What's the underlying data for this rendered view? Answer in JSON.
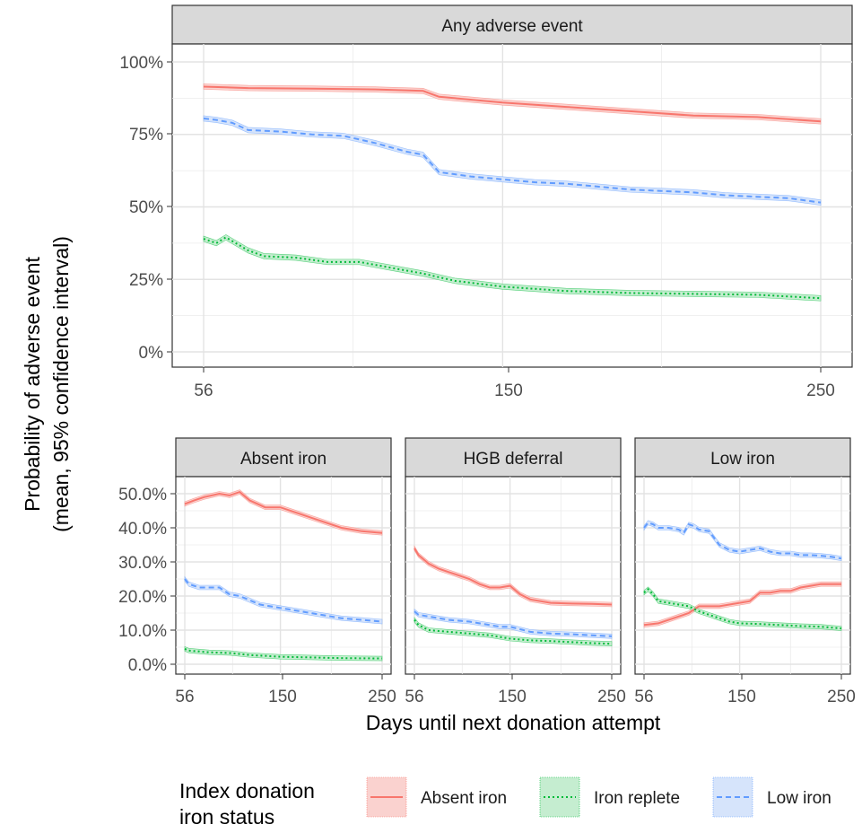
{
  "figure": {
    "ylabel_line1": "Probability of adverse event",
    "ylabel_line2": "(mean, 95% confidence interval)",
    "xlabel": "Days until next donation attempt",
    "legend": {
      "title_line1": "Index donation",
      "title_line2": "iron status",
      "items": [
        {
          "label": "Absent iron",
          "color": "#F8766D",
          "dash": "solid"
        },
        {
          "label": "Iron replete",
          "color": "#00BA38",
          "dash": "dotted"
        },
        {
          "label": "Low iron",
          "color": "#619CFF",
          "dash": "dashed"
        }
      ]
    }
  },
  "chart_data": [
    {
      "type": "line",
      "panel": "Any adverse event",
      "x_ticks": [
        56,
        150,
        250
      ],
      "y_ticks": [
        "0%",
        "25%",
        "50%",
        "75%",
        "100%"
      ],
      "xlim": [
        56,
        250
      ],
      "ylim": [
        0,
        1
      ],
      "grid": true,
      "series": [
        {
          "name": "Absent iron",
          "x": [
            56,
            70,
            90,
            110,
            125,
            130,
            150,
            170,
            190,
            210,
            230,
            250
          ],
          "y": [
            0.915,
            0.91,
            0.908,
            0.905,
            0.9,
            0.88,
            0.86,
            0.845,
            0.83,
            0.815,
            0.81,
            0.795
          ]
        },
        {
          "name": "Low iron",
          "x": [
            56,
            60,
            65,
            70,
            80,
            90,
            100,
            110,
            120,
            125,
            130,
            140,
            150,
            160,
            170,
            180,
            190,
            200,
            210,
            220,
            230,
            240,
            250
          ],
          "y": [
            0.805,
            0.8,
            0.79,
            0.765,
            0.76,
            0.75,
            0.745,
            0.72,
            0.69,
            0.68,
            0.62,
            0.605,
            0.595,
            0.585,
            0.58,
            0.57,
            0.56,
            0.555,
            0.55,
            0.54,
            0.535,
            0.53,
            0.515
          ]
        },
        {
          "name": "Iron replete",
          "x": [
            56,
            60,
            63,
            70,
            75,
            85,
            95,
            105,
            115,
            125,
            135,
            150,
            170,
            190,
            210,
            230,
            250
          ],
          "y": [
            0.39,
            0.375,
            0.395,
            0.35,
            0.33,
            0.325,
            0.31,
            0.31,
            0.29,
            0.27,
            0.245,
            0.225,
            0.21,
            0.203,
            0.2,
            0.197,
            0.185
          ]
        }
      ]
    },
    {
      "type": "line",
      "panel": "Absent iron",
      "x_ticks": [
        56,
        150,
        250
      ],
      "y_ticks": [
        "0.0%",
        "10.0%",
        "20.0%",
        "30.0%",
        "40.0%",
        "50.0%"
      ],
      "xlim": [
        56,
        250
      ],
      "ylim": [
        0,
        0.55
      ],
      "grid": true,
      "series": [
        {
          "name": "Absent iron",
          "x": [
            56,
            65,
            75,
            90,
            100,
            110,
            120,
            135,
            150,
            170,
            190,
            210,
            230,
            250
          ],
          "y": [
            0.47,
            0.48,
            0.49,
            0.5,
            0.495,
            0.505,
            0.48,
            0.46,
            0.46,
            0.44,
            0.42,
            0.4,
            0.39,
            0.385
          ]
        },
        {
          "name": "Low iron",
          "x": [
            56,
            60,
            70,
            90,
            100,
            110,
            130,
            150,
            170,
            190,
            210,
            230,
            250
          ],
          "y": [
            0.25,
            0.235,
            0.225,
            0.225,
            0.205,
            0.2,
            0.175,
            0.165,
            0.155,
            0.145,
            0.135,
            0.13,
            0.125
          ]
        },
        {
          "name": "Iron replete",
          "x": [
            56,
            60,
            80,
            100,
            120,
            150,
            180,
            210,
            250
          ],
          "y": [
            0.045,
            0.04,
            0.035,
            0.033,
            0.027,
            0.022,
            0.02,
            0.018,
            0.017
          ]
        }
      ]
    },
    {
      "type": "line",
      "panel": "HGB deferral",
      "x_ticks": [
        56,
        150,
        250
      ],
      "xlim": [
        56,
        250
      ],
      "ylim": [
        0,
        0.55
      ],
      "grid": true,
      "series": [
        {
          "name": "Absent iron",
          "x": [
            56,
            60,
            70,
            80,
            90,
            100,
            110,
            120,
            130,
            140,
            150,
            160,
            170,
            190,
            210,
            230,
            250
          ],
          "y": [
            0.34,
            0.32,
            0.295,
            0.28,
            0.27,
            0.26,
            0.25,
            0.235,
            0.225,
            0.225,
            0.23,
            0.205,
            0.19,
            0.18,
            0.178,
            0.177,
            0.175
          ]
        },
        {
          "name": "Low iron",
          "x": [
            56,
            60,
            70,
            90,
            110,
            130,
            140,
            150,
            170,
            190,
            210,
            230,
            250
          ],
          "y": [
            0.155,
            0.145,
            0.14,
            0.13,
            0.125,
            0.115,
            0.11,
            0.11,
            0.095,
            0.09,
            0.088,
            0.085,
            0.082
          ]
        },
        {
          "name": "Iron replete",
          "x": [
            56,
            60,
            70,
            90,
            110,
            130,
            150,
            170,
            190,
            210,
            230,
            250
          ],
          "y": [
            0.13,
            0.115,
            0.1,
            0.095,
            0.09,
            0.085,
            0.075,
            0.07,
            0.068,
            0.065,
            0.062,
            0.06
          ]
        }
      ]
    },
    {
      "type": "line",
      "panel": "Low iron",
      "x_ticks": [
        56,
        150,
        250
      ],
      "xlim": [
        56,
        250
      ],
      "ylim": [
        0,
        0.55
      ],
      "grid": true,
      "series": [
        {
          "name": "Low iron",
          "x": [
            56,
            60,
            65,
            70,
            80,
            90,
            95,
            100,
            105,
            110,
            120,
            130,
            140,
            150,
            160,
            170,
            180,
            190,
            200,
            210,
            220,
            230,
            240,
            250
          ],
          "y": [
            0.4,
            0.415,
            0.41,
            0.4,
            0.4,
            0.395,
            0.385,
            0.41,
            0.405,
            0.395,
            0.39,
            0.35,
            0.335,
            0.33,
            0.335,
            0.34,
            0.33,
            0.325,
            0.325,
            0.32,
            0.32,
            0.318,
            0.315,
            0.31
          ]
        },
        {
          "name": "Absent iron",
          "x": [
            56,
            70,
            90,
            100,
            110,
            120,
            130,
            140,
            150,
            160,
            170,
            180,
            190,
            200,
            210,
            220,
            230,
            240,
            250
          ],
          "y": [
            0.115,
            0.12,
            0.14,
            0.15,
            0.17,
            0.17,
            0.17,
            0.175,
            0.18,
            0.185,
            0.21,
            0.21,
            0.215,
            0.215,
            0.225,
            0.23,
            0.235,
            0.235,
            0.235
          ]
        },
        {
          "name": "Iron replete",
          "x": [
            56,
            60,
            65,
            70,
            80,
            90,
            100,
            110,
            120,
            130,
            140,
            150,
            170,
            190,
            210,
            230,
            250
          ],
          "y": [
            0.21,
            0.22,
            0.205,
            0.185,
            0.18,
            0.175,
            0.17,
            0.155,
            0.145,
            0.135,
            0.125,
            0.12,
            0.118,
            0.115,
            0.112,
            0.11,
            0.105
          ]
        }
      ]
    }
  ]
}
